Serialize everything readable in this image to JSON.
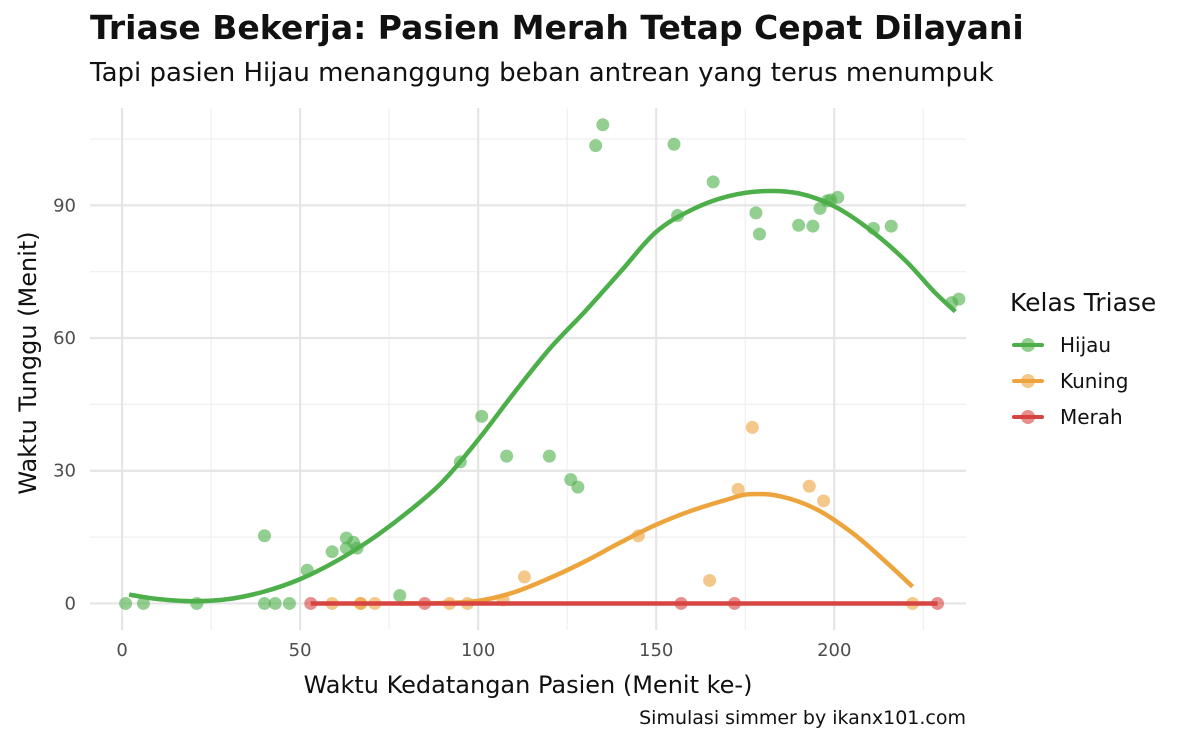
{
  "title": "Triase Bekerja: Pasien Merah Tetap Cepat Dilayani",
  "subtitle": "Tapi pasien Hijau menanggung beban antrean yang terus menumpuk",
  "caption": "Simulasi simmer by ikanx101.com",
  "legend": {
    "title": "Kelas Triase",
    "items": [
      {
        "label": "Hijau",
        "color": "#4daf4a"
      },
      {
        "label": "Kuning",
        "color": "#eda43c"
      },
      {
        "label": "Merah",
        "color": "#d64541"
      }
    ]
  },
  "chart_data": {
    "type": "scatter",
    "title": "Triase Bekerja: Pasien Merah Tetap Cepat Dilayani",
    "subtitle": "Tapi pasien Hijau menanggung beban antrean yang terus menumpuk",
    "xlabel": "Waktu Kedatangan Pasien (Menit ke-)",
    "ylabel": "Waktu Tunggu (Menit)",
    "xlim": [
      -9,
      237
    ],
    "ylim": [
      -6,
      112
    ],
    "xticks": [
      0,
      50,
      100,
      150,
      200
    ],
    "yticks": [
      0,
      30,
      60,
      90
    ],
    "grid": true,
    "legend_position": "right",
    "series": [
      {
        "name": "Hijau",
        "color": "#4daf4a",
        "points": [
          [
            1,
            0
          ],
          [
            6,
            0
          ],
          [
            21,
            0
          ],
          [
            40,
            0
          ],
          [
            40,
            15.3
          ],
          [
            43,
            0
          ],
          [
            47,
            0
          ],
          [
            52,
            7.5
          ],
          [
            59,
            11.7
          ],
          [
            63,
            12.5
          ],
          [
            63,
            14.8
          ],
          [
            65,
            13.8
          ],
          [
            66,
            12.5
          ],
          [
            78,
            1.8
          ],
          [
            95,
            32
          ],
          [
            101,
            42.3
          ],
          [
            108,
            33.3
          ],
          [
            120,
            33.3
          ],
          [
            126,
            28
          ],
          [
            128,
            26.3
          ],
          [
            133,
            103.5
          ],
          [
            135,
            108.2
          ],
          [
            155,
            103.8
          ],
          [
            156,
            87.7
          ],
          [
            166,
            95.3
          ],
          [
            178,
            88.3
          ],
          [
            179,
            83.5
          ],
          [
            190,
            85.5
          ],
          [
            194,
            85.3
          ],
          [
            196,
            89.3
          ],
          [
            198,
            91
          ],
          [
            199,
            91.2
          ],
          [
            201,
            91.8
          ],
          [
            211,
            84.8
          ],
          [
            216,
            85.3
          ],
          [
            233,
            68
          ],
          [
            235,
            68.8
          ]
        ],
        "trend": [
          [
            2,
            2
          ],
          [
            10,
            1
          ],
          [
            20,
            0.5
          ],
          [
            30,
            1
          ],
          [
            40,
            2.7
          ],
          [
            50,
            5.5
          ],
          [
            60,
            9.5
          ],
          [
            70,
            14.5
          ],
          [
            80,
            20.5
          ],
          [
            90,
            27.5
          ],
          [
            100,
            37
          ],
          [
            110,
            47.5
          ],
          [
            120,
            57.5
          ],
          [
            130,
            66
          ],
          [
            140,
            75
          ],
          [
            150,
            84
          ],
          [
            160,
            89
          ],
          [
            170,
            92
          ],
          [
            180,
            93.2
          ],
          [
            190,
            92.7
          ],
          [
            200,
            89.8
          ],
          [
            210,
            84.5
          ],
          [
            220,
            77.5
          ],
          [
            228,
            70.5
          ],
          [
            234,
            66
          ]
        ]
      },
      {
        "name": "Kuning",
        "color": "#eda43c",
        "points": [
          [
            59,
            0
          ],
          [
            67,
            0
          ],
          [
            67,
            0
          ],
          [
            71,
            0
          ],
          [
            92,
            0
          ],
          [
            97,
            0
          ],
          [
            107,
            0.8
          ],
          [
            113,
            6
          ],
          [
            145,
            15.3
          ],
          [
            165,
            5.2
          ],
          [
            173,
            25.8
          ],
          [
            177,
            39.8
          ],
          [
            193,
            26.5
          ],
          [
            197,
            23.2
          ],
          [
            222,
            0
          ]
        ],
        "trend": [
          [
            78,
            0
          ],
          [
            90,
            0.1
          ],
          [
            100,
            0.6
          ],
          [
            110,
            2.5
          ],
          [
            120,
            5.7
          ],
          [
            130,
            9.5
          ],
          [
            140,
            13.8
          ],
          [
            150,
            17.8
          ],
          [
            160,
            21
          ],
          [
            170,
            23.5
          ],
          [
            176,
            24.7
          ],
          [
            185,
            24.2
          ],
          [
            195,
            21.3
          ],
          [
            205,
            16
          ],
          [
            213,
            10.5
          ],
          [
            222,
            3.8
          ]
        ]
      },
      {
        "name": "Merah",
        "color": "#d64541",
        "points": [
          [
            53,
            0
          ],
          [
            85,
            0
          ],
          [
            157,
            0
          ],
          [
            172,
            0
          ],
          [
            229,
            0
          ]
        ],
        "trend": [
          [
            53,
            0
          ],
          [
            229,
            0
          ]
        ]
      }
    ]
  }
}
